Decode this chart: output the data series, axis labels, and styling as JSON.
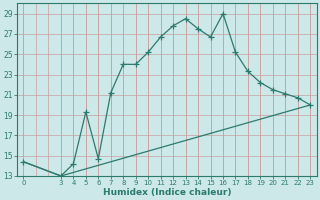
{
  "title": "",
  "xlabel": "Humidex (Indice chaleur)",
  "bg_color": "#cce8e8",
  "grid_color": "#b0d0d0",
  "line_color": "#2d7a6e",
  "xlim": [
    -0.5,
    23.5
  ],
  "ylim": [
    13,
    30
  ],
  "xticks": [
    0,
    3,
    4,
    5,
    6,
    7,
    8,
    9,
    10,
    11,
    12,
    13,
    14,
    15,
    16,
    17,
    18,
    19,
    20,
    21,
    22,
    23
  ],
  "yticks": [
    13,
    15,
    17,
    19,
    21,
    23,
    25,
    27,
    29
  ],
  "curve1_x": [
    0,
    3,
    4,
    5,
    6,
    7,
    8,
    9,
    10,
    11,
    12,
    13,
    14,
    15,
    16,
    17,
    18,
    19,
    20,
    21,
    22,
    23
  ],
  "curve1_y": [
    14.4,
    13.0,
    14.2,
    19.3,
    14.7,
    21.2,
    24.0,
    24.0,
    25.2,
    26.7,
    27.8,
    28.5,
    27.5,
    26.7,
    29.0,
    25.2,
    23.3,
    22.2,
    21.5,
    21.1,
    20.7,
    20.0
  ],
  "curve2_x": [
    0,
    3,
    23
  ],
  "curve2_y": [
    14.4,
    13.0,
    20.0
  ]
}
